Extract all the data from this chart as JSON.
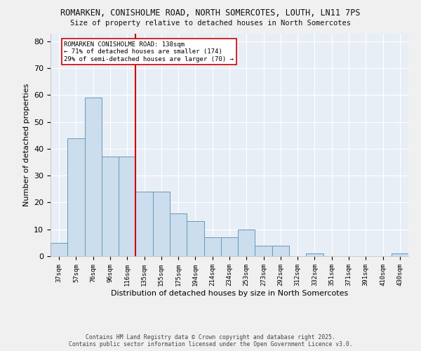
{
  "title1": "ROMARKEN, CONISHOLME ROAD, NORTH SOMERCOTES, LOUTH, LN11 7PS",
  "title2": "Size of property relative to detached houses in North Somercotes",
  "xlabel": "Distribution of detached houses by size in North Somercotes",
  "ylabel": "Number of detached properties",
  "categories": [
    "37sqm",
    "57sqm",
    "76sqm",
    "96sqm",
    "116sqm",
    "135sqm",
    "155sqm",
    "175sqm",
    "194sqm",
    "214sqm",
    "234sqm",
    "253sqm",
    "273sqm",
    "292sqm",
    "312sqm",
    "332sqm",
    "351sqm",
    "371sqm",
    "391sqm",
    "410sqm",
    "430sqm"
  ],
  "values": [
    5,
    44,
    59,
    37,
    37,
    24,
    24,
    16,
    13,
    7,
    7,
    10,
    4,
    4,
    0,
    1,
    0,
    0,
    0,
    0,
    1
  ],
  "bar_color": "#ccdded",
  "bar_edge_color": "#6699bb",
  "vline_x_index": 5,
  "vline_color": "#cc0000",
  "ylim": [
    0,
    83
  ],
  "yticks": [
    0,
    10,
    20,
    30,
    40,
    50,
    60,
    70,
    80
  ],
  "annotation_title": "ROMARKEN CONISHOLME ROAD: 138sqm",
  "annotation_line1": "← 71% of detached houses are smaller (174)",
  "annotation_line2": "29% of semi-detached houses are larger (70) →",
  "annotation_box_color": "#ffffff",
  "annotation_box_edge": "#cc0000",
  "fig_bg_color": "#f0f0f0",
  "plot_bg_color": "#e8eef6",
  "grid_color": "#ffffff",
  "footer1": "Contains HM Land Registry data © Crown copyright and database right 2025.",
  "footer2": "Contains public sector information licensed under the Open Government Licence v3.0."
}
